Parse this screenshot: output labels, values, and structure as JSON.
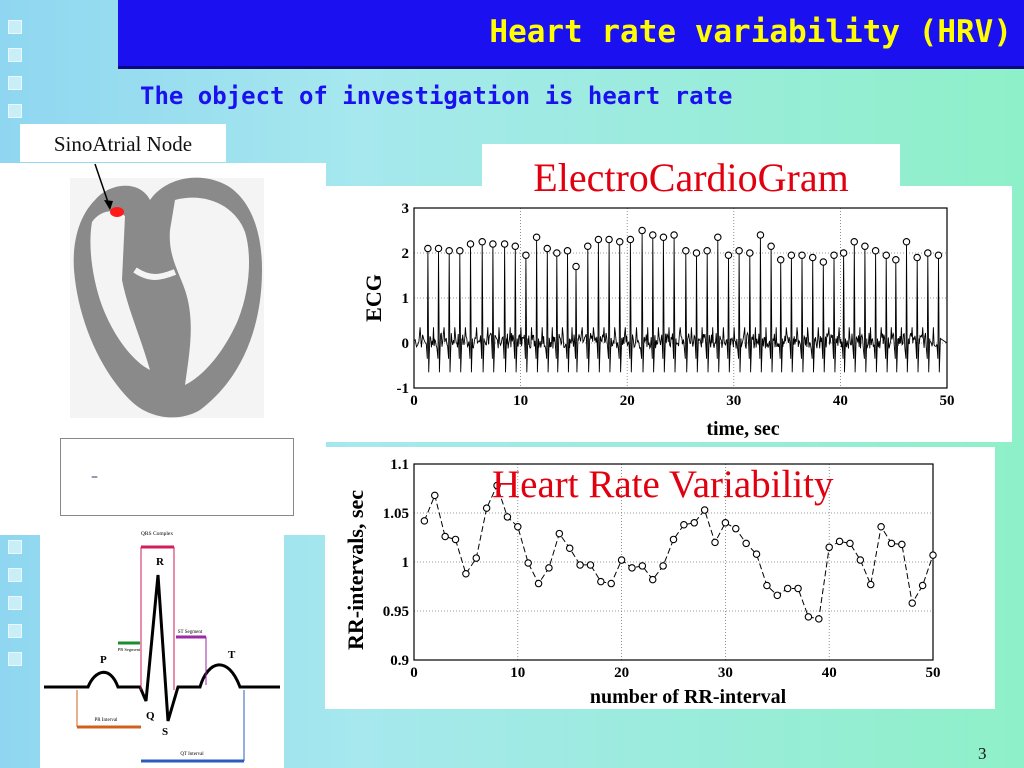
{
  "slide": {
    "title": "Heart rate variability (HRV)",
    "subtitle": "The object of investigation is heart rate",
    "page_number": "3"
  },
  "heart": {
    "label": "SinoAtrial Node",
    "sa_node_color": "#ff1a1a"
  },
  "blank_box": {
    "mark": "–"
  },
  "pqrst": {
    "qrs_label": "QRS Complex",
    "pr_segment_label": "PR Segment",
    "st_segment_label": "ST Segment",
    "pr_interval_label": "PR Interval",
    "qt_interval_label": "QT Interval",
    "p": "P",
    "q": "Q",
    "r": "R",
    "s": "S",
    "t": "T"
  },
  "chart_data": [
    {
      "type": "line",
      "title": "ElectroCardioGram",
      "xlabel": "time, sec",
      "ylabel": "ECG",
      "xlim": [
        0,
        50
      ],
      "ylim": [
        -1,
        3
      ],
      "x_ticks": [
        "0",
        "10",
        "20",
        "30",
        "40",
        "50"
      ],
      "y_ticks": [
        "-1",
        "0",
        "1",
        "2",
        "3"
      ],
      "grid": true,
      "r_peaks": [
        {
          "x": 1.3,
          "y": 2.1
        },
        {
          "x": 2.3,
          "y": 2.1
        },
        {
          "x": 3.3,
          "y": 2.05
        },
        {
          "x": 4.3,
          "y": 2.05
        },
        {
          "x": 5.3,
          "y": 2.2
        },
        {
          "x": 6.4,
          "y": 2.25
        },
        {
          "x": 7.4,
          "y": 2.2
        },
        {
          "x": 8.5,
          "y": 2.2
        },
        {
          "x": 9.5,
          "y": 2.15
        },
        {
          "x": 10.5,
          "y": 1.95
        },
        {
          "x": 11.5,
          "y": 2.35
        },
        {
          "x": 12.5,
          "y": 2.1
        },
        {
          "x": 13.4,
          "y": 2.0
        },
        {
          "x": 14.4,
          "y": 2.05
        },
        {
          "x": 15.2,
          "y": 1.7
        },
        {
          "x": 16.3,
          "y": 2.15
        },
        {
          "x": 17.3,
          "y": 2.3
        },
        {
          "x": 18.3,
          "y": 2.3
        },
        {
          "x": 19.3,
          "y": 2.25
        },
        {
          "x": 20.3,
          "y": 2.3
        },
        {
          "x": 21.4,
          "y": 2.5
        },
        {
          "x": 22.4,
          "y": 2.4
        },
        {
          "x": 23.4,
          "y": 2.35
        },
        {
          "x": 24.4,
          "y": 2.4
        },
        {
          "x": 25.5,
          "y": 2.05
        },
        {
          "x": 26.5,
          "y": 2.0
        },
        {
          "x": 27.5,
          "y": 2.05
        },
        {
          "x": 28.5,
          "y": 2.35
        },
        {
          "x": 29.5,
          "y": 1.95
        },
        {
          "x": 30.5,
          "y": 2.05
        },
        {
          "x": 31.5,
          "y": 2.0
        },
        {
          "x": 32.5,
          "y": 2.4
        },
        {
          "x": 33.5,
          "y": 2.15
        },
        {
          "x": 34.4,
          "y": 1.85
        },
        {
          "x": 35.4,
          "y": 1.95
        },
        {
          "x": 36.4,
          "y": 1.95
        },
        {
          "x": 37.4,
          "y": 1.9
        },
        {
          "x": 38.4,
          "y": 1.8
        },
        {
          "x": 39.4,
          "y": 1.95
        },
        {
          "x": 40.3,
          "y": 2.0
        },
        {
          "x": 41.3,
          "y": 2.25
        },
        {
          "x": 42.3,
          "y": 2.15
        },
        {
          "x": 43.3,
          "y": 2.05
        },
        {
          "x": 44.3,
          "y": 1.95
        },
        {
          "x": 45.2,
          "y": 1.85
        },
        {
          "x": 46.2,
          "y": 2.25
        },
        {
          "x": 47.2,
          "y": 1.9
        },
        {
          "x": 48.2,
          "y": 2.0
        },
        {
          "x": 49.2,
          "y": 1.95
        }
      ]
    },
    {
      "type": "line",
      "title": "Heart Rate Variability",
      "xlabel": "number of RR-interval",
      "ylabel": "RR-intervals, sec",
      "xlim": [
        0,
        50
      ],
      "ylim": [
        0.9,
        1.1
      ],
      "x_ticks": [
        "0",
        "10",
        "20",
        "30",
        "40",
        "50"
      ],
      "y_ticks": [
        "0.9",
        "0.95",
        "1",
        "1.05",
        "1.1"
      ],
      "grid": true,
      "values": [
        1.042,
        1.068,
        1.026,
        1.023,
        0.988,
        1.004,
        1.055,
        1.078,
        1.046,
        1.036,
        0.999,
        0.978,
        0.994,
        1.029,
        1.014,
        0.997,
        0.997,
        0.98,
        0.978,
        1.002,
        0.994,
        0.996,
        0.982,
        0.996,
        1.023,
        1.038,
        1.04,
        1.053,
        1.02,
        1.04,
        1.034,
        1.019,
        1.008,
        0.976,
        0.966,
        0.973,
        0.973,
        0.944,
        0.942,
        1.015,
        1.021,
        1.019,
        1.002,
        0.977,
        1.036,
        1.019,
        1.018,
        0.958,
        0.976,
        1.007
      ]
    }
  ]
}
